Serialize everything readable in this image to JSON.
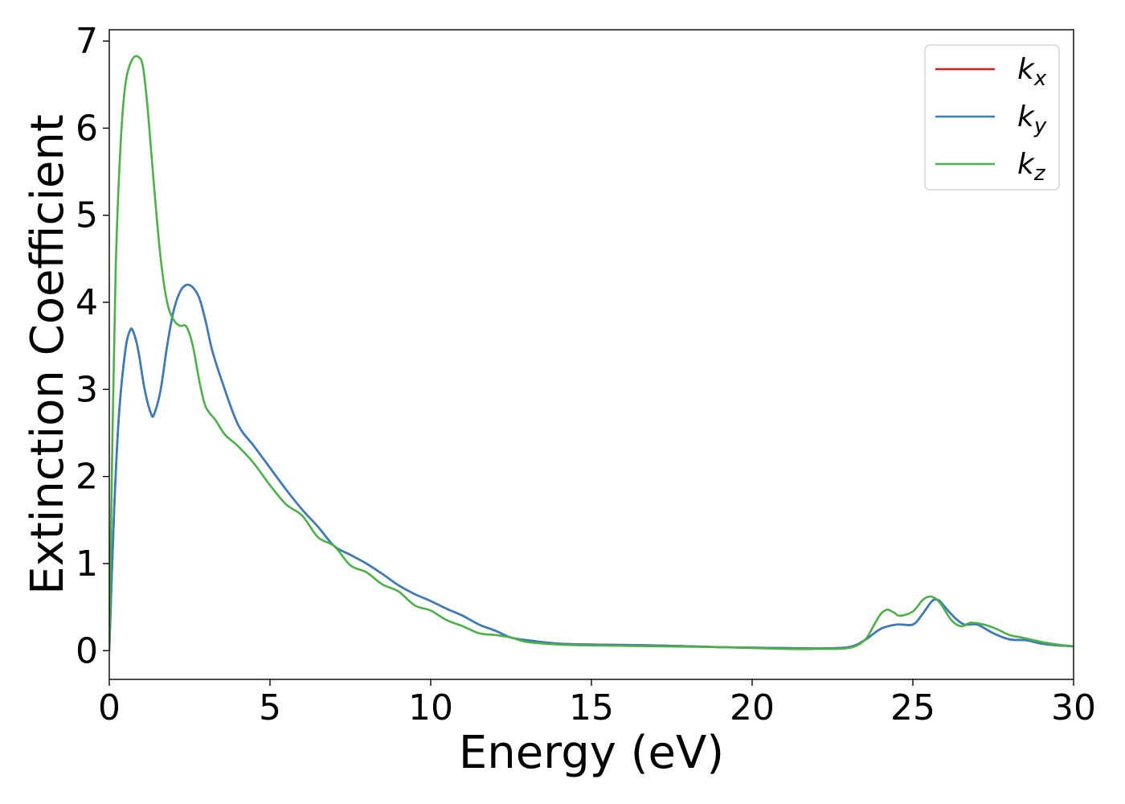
{
  "chart_data": {
    "type": "line",
    "title": "",
    "xlabel": "Energy (eV)",
    "ylabel": "Extinction Coefficient",
    "xlim": [
      0,
      30
    ],
    "ylim": [
      -0.33,
      7.13
    ],
    "xticks": [
      0,
      5,
      10,
      15,
      20,
      25,
      30
    ],
    "yticks": [
      0,
      1,
      2,
      3,
      4,
      5,
      6,
      7
    ],
    "grid": false,
    "legend_position": "top-right",
    "series": [
      {
        "name": "k",
        "subscript": "x",
        "color": "#e41a1c",
        "points": [
          [
            0,
            0
          ],
          [
            0.15,
            1.6
          ],
          [
            0.3,
            2.7
          ],
          [
            0.5,
            3.45
          ],
          [
            0.65,
            3.68
          ],
          [
            0.75,
            3.66
          ],
          [
            0.9,
            3.45
          ],
          [
            1.1,
            3.0
          ],
          [
            1.3,
            2.72
          ],
          [
            1.4,
            2.72
          ],
          [
            1.6,
            3.0
          ],
          [
            1.8,
            3.5
          ],
          [
            2.0,
            3.9
          ],
          [
            2.2,
            4.12
          ],
          [
            2.4,
            4.2
          ],
          [
            2.6,
            4.17
          ],
          [
            2.8,
            4.05
          ],
          [
            3.0,
            3.78
          ],
          [
            3.2,
            3.45
          ],
          [
            3.5,
            3.1
          ],
          [
            4.0,
            2.6
          ],
          [
            4.5,
            2.35
          ],
          [
            5.0,
            2.1
          ],
          [
            5.5,
            1.85
          ],
          [
            6.0,
            1.62
          ],
          [
            6.5,
            1.42
          ],
          [
            7.0,
            1.2
          ],
          [
            7.5,
            1.1
          ],
          [
            8.0,
            1.0
          ],
          [
            8.5,
            0.88
          ],
          [
            9.0,
            0.75
          ],
          [
            9.5,
            0.65
          ],
          [
            10.0,
            0.57
          ],
          [
            10.5,
            0.48
          ],
          [
            11.0,
            0.4
          ],
          [
            11.5,
            0.3
          ],
          [
            12.0,
            0.23
          ],
          [
            12.5,
            0.15
          ],
          [
            13.0,
            0.12
          ],
          [
            14.0,
            0.08
          ],
          [
            15.0,
            0.07
          ],
          [
            17.0,
            0.06
          ],
          [
            19.0,
            0.04
          ],
          [
            21.0,
            0.03
          ],
          [
            22.0,
            0.025
          ],
          [
            23.0,
            0.04
          ],
          [
            23.5,
            0.12
          ],
          [
            24.0,
            0.25
          ],
          [
            24.5,
            0.3
          ],
          [
            25.0,
            0.3
          ],
          [
            25.3,
            0.42
          ],
          [
            25.6,
            0.57
          ],
          [
            25.8,
            0.58
          ],
          [
            26.0,
            0.5
          ],
          [
            26.3,
            0.38
          ],
          [
            26.6,
            0.3
          ],
          [
            27.0,
            0.3
          ],
          [
            27.5,
            0.2
          ],
          [
            28.0,
            0.13
          ],
          [
            28.5,
            0.12
          ],
          [
            29.0,
            0.08
          ],
          [
            29.5,
            0.06
          ],
          [
            30.0,
            0.05
          ]
        ]
      },
      {
        "name": "k",
        "subscript": "y",
        "color": "#377eb8",
        "points": [
          [
            0,
            0
          ],
          [
            0.15,
            1.6
          ],
          [
            0.3,
            2.7
          ],
          [
            0.5,
            3.45
          ],
          [
            0.65,
            3.68
          ],
          [
            0.75,
            3.66
          ],
          [
            0.9,
            3.45
          ],
          [
            1.1,
            3.0
          ],
          [
            1.3,
            2.72
          ],
          [
            1.4,
            2.72
          ],
          [
            1.6,
            3.0
          ],
          [
            1.8,
            3.5
          ],
          [
            2.0,
            3.9
          ],
          [
            2.2,
            4.12
          ],
          [
            2.4,
            4.2
          ],
          [
            2.6,
            4.17
          ],
          [
            2.8,
            4.05
          ],
          [
            3.0,
            3.78
          ],
          [
            3.2,
            3.45
          ],
          [
            3.5,
            3.1
          ],
          [
            4.0,
            2.6
          ],
          [
            4.5,
            2.35
          ],
          [
            5.0,
            2.1
          ],
          [
            5.5,
            1.85
          ],
          [
            6.0,
            1.62
          ],
          [
            6.5,
            1.42
          ],
          [
            7.0,
            1.2
          ],
          [
            7.5,
            1.1
          ],
          [
            8.0,
            1.0
          ],
          [
            8.5,
            0.88
          ],
          [
            9.0,
            0.75
          ],
          [
            9.5,
            0.65
          ],
          [
            10.0,
            0.57
          ],
          [
            10.5,
            0.48
          ],
          [
            11.0,
            0.4
          ],
          [
            11.5,
            0.3
          ],
          [
            12.0,
            0.23
          ],
          [
            12.5,
            0.15
          ],
          [
            13.0,
            0.12
          ],
          [
            14.0,
            0.08
          ],
          [
            15.0,
            0.07
          ],
          [
            17.0,
            0.06
          ],
          [
            19.0,
            0.04
          ],
          [
            21.0,
            0.03
          ],
          [
            22.0,
            0.025
          ],
          [
            23.0,
            0.04
          ],
          [
            23.5,
            0.12
          ],
          [
            24.0,
            0.25
          ],
          [
            24.5,
            0.3
          ],
          [
            25.0,
            0.3
          ],
          [
            25.3,
            0.42
          ],
          [
            25.6,
            0.57
          ],
          [
            25.8,
            0.58
          ],
          [
            26.0,
            0.5
          ],
          [
            26.3,
            0.38
          ],
          [
            26.6,
            0.3
          ],
          [
            27.0,
            0.3
          ],
          [
            27.5,
            0.2
          ],
          [
            28.0,
            0.13
          ],
          [
            28.5,
            0.12
          ],
          [
            29.0,
            0.08
          ],
          [
            29.5,
            0.06
          ],
          [
            30.0,
            0.05
          ]
        ]
      },
      {
        "name": "k",
        "subscript": "z",
        "color": "#4daf4a",
        "points": [
          [
            0,
            0
          ],
          [
            0.1,
            2.5
          ],
          [
            0.2,
            4.4
          ],
          [
            0.35,
            5.8
          ],
          [
            0.5,
            6.5
          ],
          [
            0.7,
            6.78
          ],
          [
            0.9,
            6.82
          ],
          [
            1.05,
            6.7
          ],
          [
            1.2,
            6.2
          ],
          [
            1.4,
            5.3
          ],
          [
            1.6,
            4.5
          ],
          [
            1.8,
            4.0
          ],
          [
            2.0,
            3.8
          ],
          [
            2.2,
            3.73
          ],
          [
            2.4,
            3.72
          ],
          [
            2.6,
            3.5
          ],
          [
            2.8,
            3.1
          ],
          [
            3.0,
            2.8
          ],
          [
            3.3,
            2.65
          ],
          [
            3.6,
            2.48
          ],
          [
            4.0,
            2.35
          ],
          [
            4.5,
            2.15
          ],
          [
            5.0,
            1.9
          ],
          [
            5.5,
            1.68
          ],
          [
            6.0,
            1.55
          ],
          [
            6.5,
            1.3
          ],
          [
            7.0,
            1.2
          ],
          [
            7.5,
            0.98
          ],
          [
            8.0,
            0.9
          ],
          [
            8.5,
            0.76
          ],
          [
            9.0,
            0.68
          ],
          [
            9.5,
            0.52
          ],
          [
            10.0,
            0.46
          ],
          [
            10.5,
            0.35
          ],
          [
            11.0,
            0.28
          ],
          [
            11.5,
            0.2
          ],
          [
            12.0,
            0.18
          ],
          [
            12.5,
            0.15
          ],
          [
            13.0,
            0.1
          ],
          [
            14.0,
            0.07
          ],
          [
            15.0,
            0.06
          ],
          [
            17.0,
            0.05
          ],
          [
            19.0,
            0.04
          ],
          [
            21.0,
            0.02
          ],
          [
            22.0,
            0.02
          ],
          [
            23.0,
            0.03
          ],
          [
            23.5,
            0.12
          ],
          [
            23.8,
            0.3
          ],
          [
            24.0,
            0.42
          ],
          [
            24.2,
            0.47
          ],
          [
            24.4,
            0.44
          ],
          [
            24.6,
            0.4
          ],
          [
            25.0,
            0.45
          ],
          [
            25.3,
            0.58
          ],
          [
            25.5,
            0.62
          ],
          [
            25.7,
            0.6
          ],
          [
            25.9,
            0.52
          ],
          [
            26.2,
            0.35
          ],
          [
            26.5,
            0.28
          ],
          [
            26.8,
            0.32
          ],
          [
            27.2,
            0.3
          ],
          [
            27.6,
            0.25
          ],
          [
            28.0,
            0.18
          ],
          [
            28.4,
            0.15
          ],
          [
            29.0,
            0.1
          ],
          [
            29.5,
            0.07
          ],
          [
            30.0,
            0.05
          ]
        ]
      }
    ]
  }
}
